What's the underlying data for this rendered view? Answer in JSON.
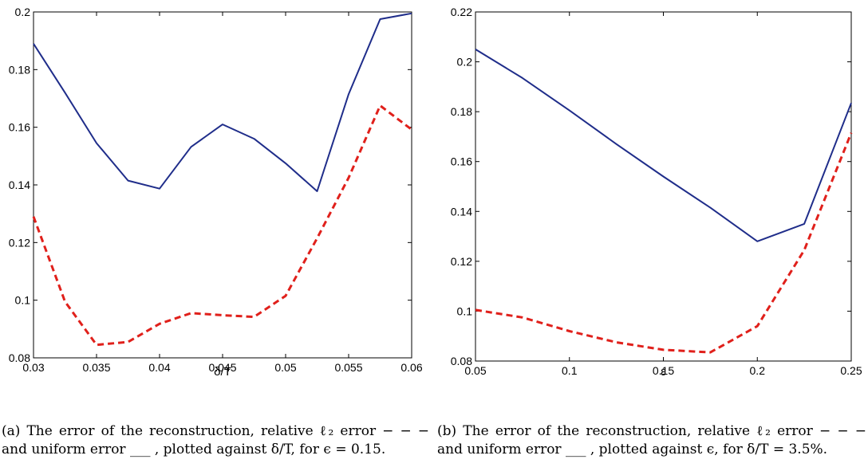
{
  "chart_data": [
    {
      "type": "line",
      "xlabel": "δ/T",
      "ylabel": "",
      "xlim": [
        0.03,
        0.06
      ],
      "ylim": [
        0.08,
        0.2
      ],
      "xticks": [
        "0.03",
        "0.035",
        "0.04",
        "0.045",
        "0.05",
        "0.055",
        "0.06"
      ],
      "yticks": [
        "0.08",
        "0.1",
        "0.12",
        "0.14",
        "0.16",
        "0.18",
        "0.2"
      ],
      "x": [
        0.03,
        0.0325,
        0.035,
        0.0375,
        0.04,
        0.0425,
        0.045,
        0.0475,
        0.05,
        0.0525,
        0.055,
        0.0575,
        0.06
      ],
      "series": [
        {
          "style": "solid",
          "color": "#1f2d8a",
          "values": [
            0.189,
            0.172,
            0.1545,
            0.1415,
            0.1387,
            0.1532,
            0.161,
            0.156,
            0.1475,
            0.1378,
            0.1715,
            0.1975,
            0.1995
          ]
        },
        {
          "style": "dashed",
          "color": "#e0201b",
          "values": [
            0.129,
            0.0995,
            0.0845,
            0.0855,
            0.0918,
            0.0955,
            0.0948,
            0.0942,
            0.1015,
            0.1215,
            0.1425,
            0.1675,
            0.1592
          ]
        }
      ],
      "caption": "(a) The error of the reconstruction, relative ℓ₂ error − − − and uniform error ___ , plotted against δ/T, for ϵ = 0.15."
    },
    {
      "type": "line",
      "xlabel": "ε",
      "ylabel": "",
      "xlim": [
        0.05,
        0.25
      ],
      "ylim": [
        0.08,
        0.22
      ],
      "xticks": [
        "0.05",
        "0.1",
        "0.15",
        "0.2",
        "0.25"
      ],
      "yticks": [
        "0.08",
        "0.1",
        "0.12",
        "0.14",
        "0.16",
        "0.18",
        "0.2",
        "0.22"
      ],
      "x": [
        0.05,
        0.075,
        0.1,
        0.125,
        0.15,
        0.175,
        0.2,
        0.225,
        0.25
      ],
      "series": [
        {
          "style": "solid",
          "color": "#1f2d8a",
          "values": [
            0.205,
            0.1935,
            0.1805,
            0.167,
            0.154,
            0.1415,
            0.128,
            0.135,
            0.1835
          ]
        },
        {
          "style": "dashed",
          "color": "#e0201b",
          "values": [
            0.1005,
            0.0975,
            0.092,
            0.0875,
            0.0845,
            0.0835,
            0.094,
            0.1245,
            0.1715
          ]
        }
      ],
      "caption": "(b) The error of the reconstruction, relative ℓ₂ error − − − and uniform error ___ , plotted against ϵ, for δ/T = 3.5%."
    }
  ]
}
